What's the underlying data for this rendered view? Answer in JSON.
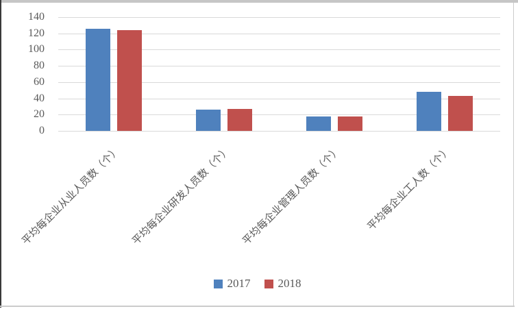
{
  "chart_data": {
    "type": "bar",
    "title": "",
    "xlabel": "",
    "ylabel": "",
    "categories": [
      "平均每企业从业人员数（个）",
      "平均每企业研发人员数（个）",
      "平均每企业管理人员数（个）",
      "平均每企业工人数（个）"
    ],
    "series": [
      {
        "name": "2017",
        "color": "#4f81bd",
        "values": [
          126,
          26,
          18,
          48
        ]
      },
      {
        "name": "2018",
        "color": "#c0504d",
        "values": [
          124,
          27,
          18,
          43
        ]
      }
    ],
    "ylim": [
      0,
      140
    ],
    "yticks": [
      0,
      20,
      40,
      60,
      80,
      100,
      120,
      140
    ],
    "grid": true,
    "gridline_color": "#d9d9d9",
    "axis_text_color": "#595959",
    "x_label_rotation_deg": 45,
    "legend_position": "bottom"
  },
  "frame": {
    "top_strip_color": "#c6c6c6",
    "left_line_color": "#3a3a3a",
    "bottom_line_color": "#cbcbcb",
    "right_line_color": "#cbcbcb"
  }
}
